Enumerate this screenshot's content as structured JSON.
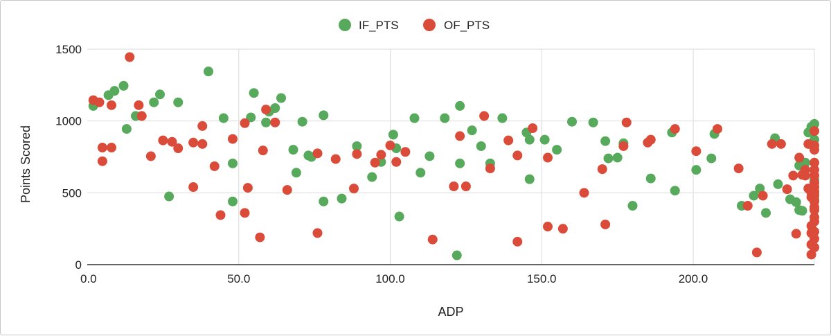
{
  "chart_data": {
    "type": "scatter",
    "title": "",
    "xlabel": "ADP",
    "ylabel": "Points Scored",
    "xlim": [
      0,
      240
    ],
    "ylim": [
      0,
      1500
    ],
    "x_ticks": [
      "0.0",
      "50.0",
      "100.0",
      "150.0",
      "200.0"
    ],
    "x_tick_values": [
      0,
      50,
      100,
      150,
      200
    ],
    "y_ticks": [
      "0",
      "500",
      "1000",
      "1500"
    ],
    "y_tick_values": [
      0,
      500,
      1000,
      1500
    ],
    "grid": true,
    "legend_position": "top",
    "series": [
      {
        "name": "IF_PTS",
        "color": "#57a95b",
        "points": [
          [
            2,
            1105
          ],
          [
            7,
            1180
          ],
          [
            9,
            1210
          ],
          [
            12,
            1245
          ],
          [
            13,
            945
          ],
          [
            16,
            1035
          ],
          [
            22,
            1130
          ],
          [
            24,
            1185
          ],
          [
            27,
            475
          ],
          [
            30,
            1130
          ],
          [
            40,
            1345
          ],
          [
            45,
            1020
          ],
          [
            48,
            705
          ],
          [
            48,
            440
          ],
          [
            54,
            1025
          ],
          [
            55,
            1195
          ],
          [
            59,
            990
          ],
          [
            60,
            1065
          ],
          [
            62,
            1090
          ],
          [
            64,
            1160
          ],
          [
            68,
            800
          ],
          [
            69,
            640
          ],
          [
            71,
            995
          ],
          [
            73,
            760
          ],
          [
            74,
            750
          ],
          [
            78,
            440
          ],
          [
            78,
            1040
          ],
          [
            84,
            460
          ],
          [
            89,
            825
          ],
          [
            94,
            610
          ],
          [
            97,
            715
          ],
          [
            101,
            905
          ],
          [
            102,
            810
          ],
          [
            103,
            335
          ],
          [
            108,
            1020
          ],
          [
            110,
            640
          ],
          [
            113,
            755
          ],
          [
            118,
            1020
          ],
          [
            122,
            65
          ],
          [
            123,
            1105
          ],
          [
            123,
            705
          ],
          [
            127,
            935
          ],
          [
            130,
            825
          ],
          [
            133,
            705
          ],
          [
            137,
            1020
          ],
          [
            145,
            920
          ],
          [
            146,
            595
          ],
          [
            146,
            870
          ],
          [
            151,
            870
          ],
          [
            155,
            800
          ],
          [
            160,
            995
          ],
          [
            167,
            990
          ],
          [
            171,
            860
          ],
          [
            172,
            740
          ],
          [
            175,
            745
          ],
          [
            177,
            845
          ],
          [
            180,
            410
          ],
          [
            186,
            600
          ],
          [
            193,
            920
          ],
          [
            194,
            515
          ],
          [
            201,
            660
          ],
          [
            206,
            740
          ],
          [
            207,
            910
          ],
          [
            216,
            410
          ],
          [
            220,
            480
          ],
          [
            222,
            530
          ],
          [
            224,
            360
          ],
          [
            227,
            880
          ],
          [
            228,
            560
          ],
          [
            232,
            455
          ],
          [
            234,
            435
          ],
          [
            235,
            380
          ],
          [
            235,
            690
          ],
          [
            236,
            375
          ],
          [
            237,
            710
          ],
          [
            238,
            920
          ],
          [
            239,
            960
          ],
          [
            240,
            980
          ],
          [
            240,
            930
          ],
          [
            240,
            870
          ],
          [
            240,
            590
          ],
          [
            240,
            540
          ],
          [
            240,
            500
          ],
          [
            240,
            480
          ],
          [
            240,
            455
          ]
        ]
      },
      {
        "name": "OF_PTS",
        "color": "#db4b3a",
        "points": [
          [
            2,
            1145
          ],
          [
            4,
            1130
          ],
          [
            5,
            720
          ],
          [
            5,
            815
          ],
          [
            8,
            815
          ],
          [
            8,
            1110
          ],
          [
            14,
            1445
          ],
          [
            17,
            1110
          ],
          [
            18,
            1035
          ],
          [
            21,
            755
          ],
          [
            25,
            865
          ],
          [
            28,
            855
          ],
          [
            30,
            810
          ],
          [
            35,
            540
          ],
          [
            35,
            850
          ],
          [
            38,
            965
          ],
          [
            38,
            840
          ],
          [
            42,
            685
          ],
          [
            44,
            345
          ],
          [
            48,
            875
          ],
          [
            52,
            985
          ],
          [
            52,
            360
          ],
          [
            53,
            535
          ],
          [
            57,
            190
          ],
          [
            58,
            795
          ],
          [
            59,
            1080
          ],
          [
            62,
            990
          ],
          [
            66,
            520
          ],
          [
            76,
            220
          ],
          [
            76,
            775
          ],
          [
            82,
            735
          ],
          [
            88,
            530
          ],
          [
            89,
            770
          ],
          [
            95,
            710
          ],
          [
            97,
            765
          ],
          [
            100,
            830
          ],
          [
            102,
            715
          ],
          [
            105,
            785
          ],
          [
            114,
            175
          ],
          [
            121,
            545
          ],
          [
            123,
            895
          ],
          [
            125,
            545
          ],
          [
            131,
            1035
          ],
          [
            133,
            670
          ],
          [
            139,
            865
          ],
          [
            142,
            160
          ],
          [
            142,
            760
          ],
          [
            147,
            950
          ],
          [
            152,
            265
          ],
          [
            152,
            745
          ],
          [
            157,
            250
          ],
          [
            164,
            500
          ],
          [
            170,
            665
          ],
          [
            171,
            280
          ],
          [
            177,
            825
          ],
          [
            178,
            990
          ],
          [
            185,
            850
          ],
          [
            186,
            870
          ],
          [
            194,
            945
          ],
          [
            201,
            790
          ],
          [
            208,
            945
          ],
          [
            215,
            670
          ],
          [
            218,
            410
          ],
          [
            221,
            85
          ],
          [
            223,
            480
          ],
          [
            226,
            840
          ],
          [
            229,
            840
          ],
          [
            231,
            525
          ],
          [
            233,
            620
          ],
          [
            234,
            215
          ],
          [
            235,
            745
          ],
          [
            236,
            625
          ],
          [
            237,
            660
          ],
          [
            237,
            620
          ],
          [
            238,
            530
          ],
          [
            238,
            840
          ],
          [
            239,
            470
          ],
          [
            239,
            500
          ],
          [
            239,
            270
          ],
          [
            239,
            220
          ],
          [
            239,
            140
          ],
          [
            239,
            70
          ],
          [
            240,
            930
          ],
          [
            240,
            830
          ],
          [
            240,
            800
          ],
          [
            240,
            710
          ],
          [
            240,
            660
          ],
          [
            240,
            620
          ],
          [
            240,
            570
          ],
          [
            240,
            540
          ],
          [
            240,
            510
          ],
          [
            240,
            480
          ],
          [
            240,
            440
          ],
          [
            240,
            400
          ],
          [
            240,
            380
          ],
          [
            240,
            330
          ],
          [
            240,
            300
          ],
          [
            240,
            230
          ],
          [
            240,
            180
          ],
          [
            240,
            120
          ]
        ]
      }
    ]
  }
}
